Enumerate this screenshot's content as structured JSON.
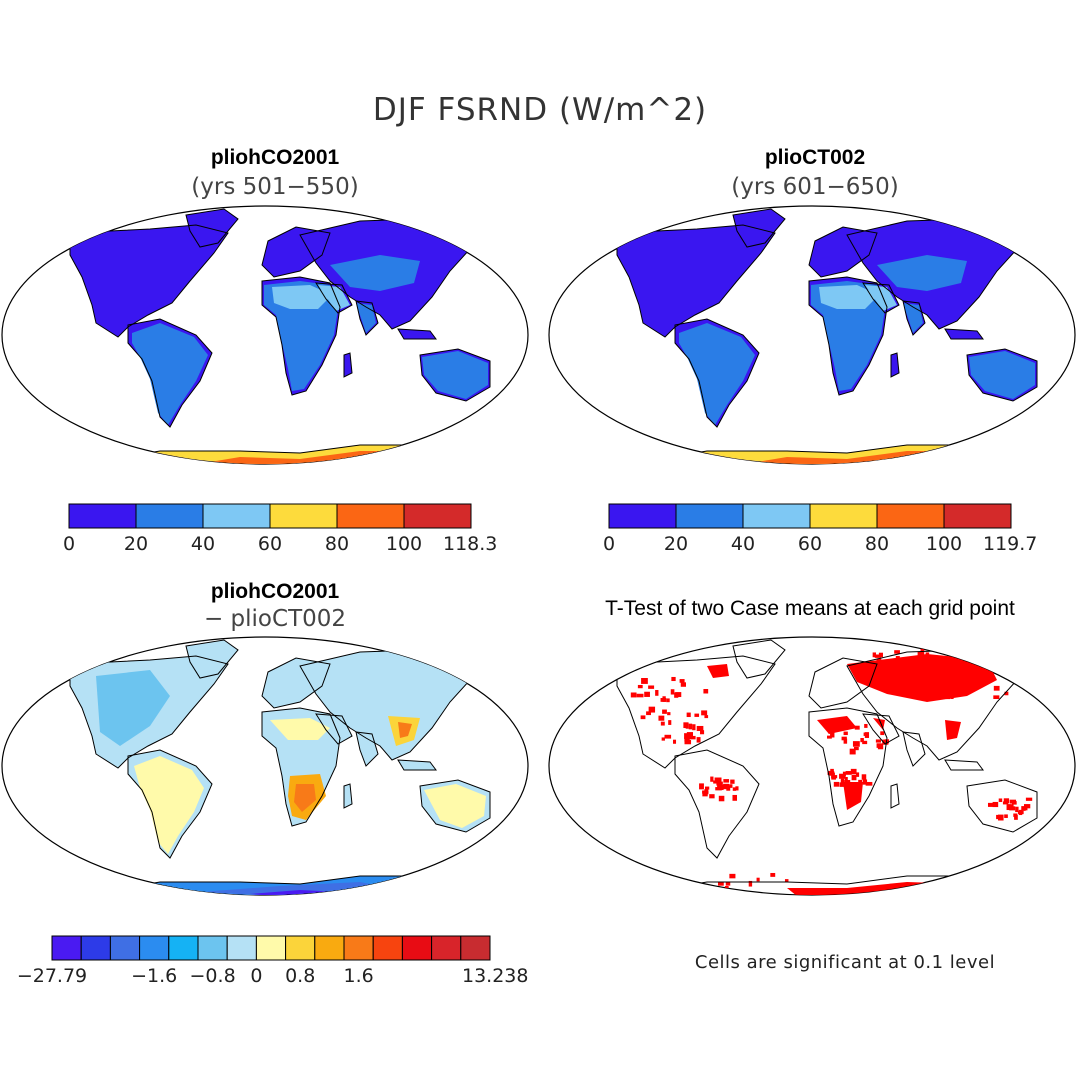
{
  "figure": {
    "title": "DJF FSRND (W/m^2)"
  },
  "panels": [
    {
      "id": "case1",
      "title": "pliohCO2001",
      "subtitle": "(yrs 501−550)",
      "colorbar": {
        "colors": [
          "#3a16f0",
          "#2a7de6",
          "#7ec8f4",
          "#fddb3c",
          "#fb6614",
          "#d42a2a"
        ],
        "tick_labels": [
          "0",
          "20",
          "40",
          "60",
          "80",
          "100",
          "118.3"
        ]
      }
    },
    {
      "id": "case2",
      "title": "plioCT002",
      "subtitle": "(yrs 601−650)",
      "colorbar": {
        "colors": [
          "#3a16f0",
          "#2a7de6",
          "#7ec8f4",
          "#fddb3c",
          "#fb6614",
          "#d42a2a"
        ],
        "tick_labels": [
          "0",
          "20",
          "40",
          "60",
          "80",
          "100",
          "119.7"
        ]
      }
    },
    {
      "id": "diff",
      "title": "pliohCO2001",
      "subtitle": "− plioCT002",
      "colorbar": {
        "colors": [
          "#4a1af2",
          "#2d3be8",
          "#3f6fe4",
          "#2b8cf0",
          "#15b2f4",
          "#6cc4ef",
          "#b5e1f5",
          "#fffaaa",
          "#fbd43a",
          "#f9aa10",
          "#f87a18",
          "#f7440f",
          "#e80c14",
          "#d8242a",
          "#c82c30"
        ],
        "tick_labels": [
          "−27.79",
          "−1.6",
          "−0.8",
          "0",
          "0.8",
          "1.6",
          "13.238"
        ]
      }
    },
    {
      "id": "ttest",
      "title": "T-Test of two Case means at each grid point",
      "note": "Cells are significant at 0.1 level",
      "signif_color": "#ff0000"
    }
  ]
}
